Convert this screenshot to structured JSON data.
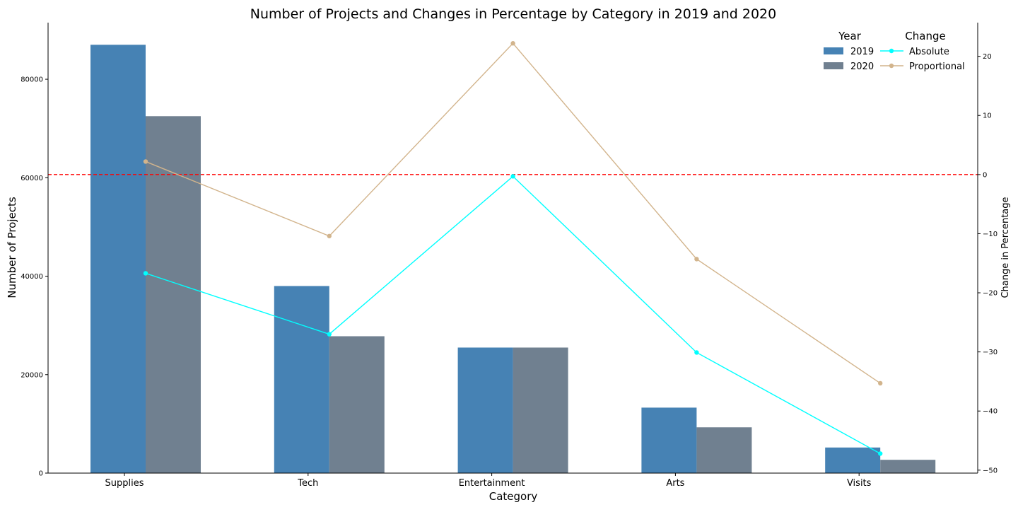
{
  "chart_data": {
    "type": "bar",
    "title": "Number of Projects and Changes in Percentage by Category in 2019 and 2020",
    "xlabel": "Category",
    "ylabel": "Number of Projects",
    "y2label": "Change in Percentage",
    "categories": [
      "Supplies",
      "Tech",
      "Entertainment",
      "Arts",
      "Visits"
    ],
    "ylim": [
      0,
      91500
    ],
    "yticks": [
      0,
      20000,
      40000,
      60000,
      80000
    ],
    "y2lim": [
      -50.5,
      25.7
    ],
    "y2ticks": [
      20,
      10,
      0,
      -10,
      -20,
      -30,
      -40,
      -50
    ],
    "series": [
      {
        "name": "2019",
        "axis": "left",
        "kind": "bar",
        "color": "#4682b4",
        "values": [
          87000,
          38000,
          25500,
          13300,
          5200
        ]
      },
      {
        "name": "2020",
        "axis": "left",
        "kind": "bar",
        "color": "#708090",
        "values": [
          72500,
          27800,
          25500,
          9300,
          2700
        ]
      },
      {
        "name": "Absolute",
        "axis": "right",
        "kind": "line",
        "color": "#00ffff",
        "values": [
          -16.7,
          -27,
          -0.3,
          -30.1,
          -47.2
        ]
      },
      {
        "name": "Proportional",
        "axis": "right",
        "kind": "line",
        "color": "#d2b48c",
        "values": [
          2.2,
          -10.4,
          22.2,
          -14.3,
          -35.3
        ]
      }
    ],
    "reference_line": {
      "axis": "right",
      "value": 0,
      "color": "#ff0000",
      "style": "dashed"
    },
    "legend": {
      "placement": "top-right",
      "groups": [
        {
          "title": "Year",
          "entries": [
            "2019",
            "2020"
          ]
        },
        {
          "title": "Change",
          "entries": [
            "Absolute",
            "Proportional"
          ]
        }
      ]
    },
    "grid": false
  }
}
